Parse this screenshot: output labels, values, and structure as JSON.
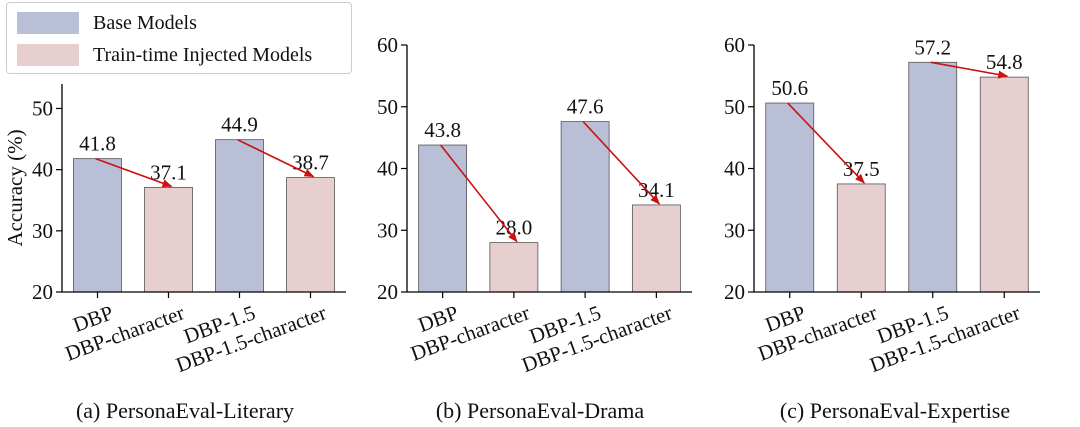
{
  "colors": {
    "base": "#b8bfd6",
    "injected": "#e7cfd0",
    "arrow": "#cc1111",
    "axis": "#000000",
    "bar_edge": "#555555"
  },
  "legend": {
    "placement": "top-left",
    "items": [
      {
        "label": "Base Models",
        "color_key": "base"
      },
      {
        "label": "Train-time Injected Models",
        "color_key": "injected"
      }
    ]
  },
  "chart_data": [
    {
      "type": "bar",
      "caption": "(a) PersonaEval-Literary",
      "ylabel": "Accuracy (%)",
      "ylim": [
        20,
        54
      ],
      "yticks": [
        20,
        30,
        40,
        50
      ],
      "categories": [
        "DBP",
        "DBP-character",
        "DBP-1.5",
        "DBP-1.5-character"
      ],
      "values": [
        41.8,
        37.1,
        44.9,
        38.7
      ],
      "value_labels": [
        "41.8",
        "37.1",
        "44.9",
        "38.7"
      ],
      "groups": [
        "base",
        "injected",
        "base",
        "injected"
      ],
      "arrows": [
        [
          0,
          1
        ],
        [
          2,
          3
        ]
      ]
    },
    {
      "type": "bar",
      "caption": "(b) PersonaEval-Drama",
      "ylabel": "",
      "ylim": [
        20,
        60
      ],
      "yticks": [
        20,
        30,
        40,
        50,
        60
      ],
      "categories": [
        "DBP",
        "DBP-character",
        "DBP-1.5",
        "DBP-1.5-character"
      ],
      "values": [
        43.8,
        28.0,
        47.6,
        34.1
      ],
      "value_labels": [
        "43.8",
        "28.0",
        "47.6",
        "34.1"
      ],
      "groups": [
        "base",
        "injected",
        "base",
        "injected"
      ],
      "arrows": [
        [
          0,
          1
        ],
        [
          2,
          3
        ]
      ]
    },
    {
      "type": "bar",
      "caption": "(c) PersonaEval-Expertise",
      "ylabel": "",
      "ylim": [
        20,
        60
      ],
      "yticks": [
        20,
        30,
        40,
        50,
        60
      ],
      "categories": [
        "DBP",
        "DBP-character",
        "DBP-1.5",
        "DBP-1.5-character"
      ],
      "values": [
        50.6,
        37.5,
        57.2,
        54.8
      ],
      "value_labels": [
        "50.6",
        "37.5",
        "57.2",
        "54.8"
      ],
      "groups": [
        "base",
        "injected",
        "base",
        "injected"
      ],
      "arrows": [
        [
          0,
          1
        ],
        [
          2,
          3
        ]
      ]
    }
  ]
}
